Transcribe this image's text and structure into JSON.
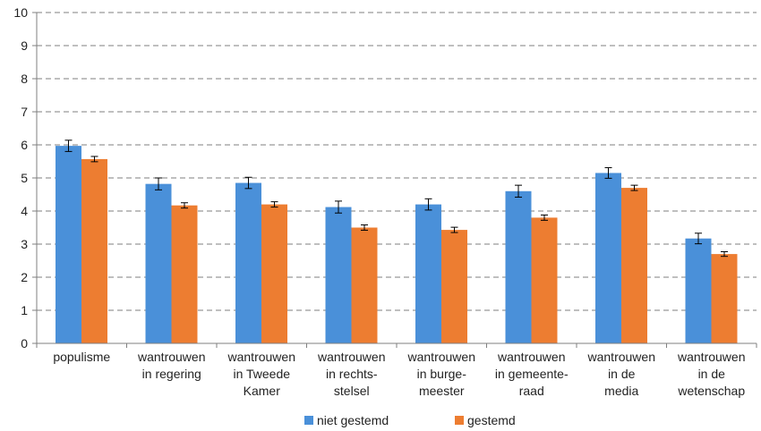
{
  "chart_data": {
    "type": "bar",
    "categories": [
      [
        "populisme"
      ],
      [
        "wantrouwen",
        "in regering"
      ],
      [
        "wantrouwen",
        "in Tweede",
        "Kamer"
      ],
      [
        "wantrouwen",
        "in rechts-",
        "stelsel"
      ],
      [
        "wantrouwen",
        "in burge-",
        "meester"
      ],
      [
        "wantrouwen",
        "in gemeente-",
        "raad"
      ],
      [
        "wantrouwen",
        "in de",
        "media"
      ],
      [
        "wantrouwen",
        "in de",
        "wetenschap"
      ]
    ],
    "series": [
      {
        "name": "niet gestemd",
        "color": "#4a90d9",
        "values": [
          5.97,
          4.82,
          4.85,
          4.12,
          4.2,
          4.6,
          5.15,
          3.17
        ],
        "error": [
          0.17,
          0.18,
          0.17,
          0.18,
          0.17,
          0.18,
          0.16,
          0.16
        ]
      },
      {
        "name": "gestemd",
        "color": "#ed7d31",
        "values": [
          5.57,
          4.17,
          4.2,
          3.5,
          3.43,
          3.8,
          4.7,
          2.7
        ],
        "error": [
          0.08,
          0.08,
          0.08,
          0.08,
          0.08,
          0.08,
          0.08,
          0.07
        ]
      }
    ],
    "ylim": [
      0,
      10
    ],
    "yticks": [
      "0",
      "1",
      "2",
      "3",
      "4",
      "5",
      "6",
      "7",
      "8",
      "9",
      "10"
    ],
    "grid": true,
    "legend_position": "bottom"
  }
}
